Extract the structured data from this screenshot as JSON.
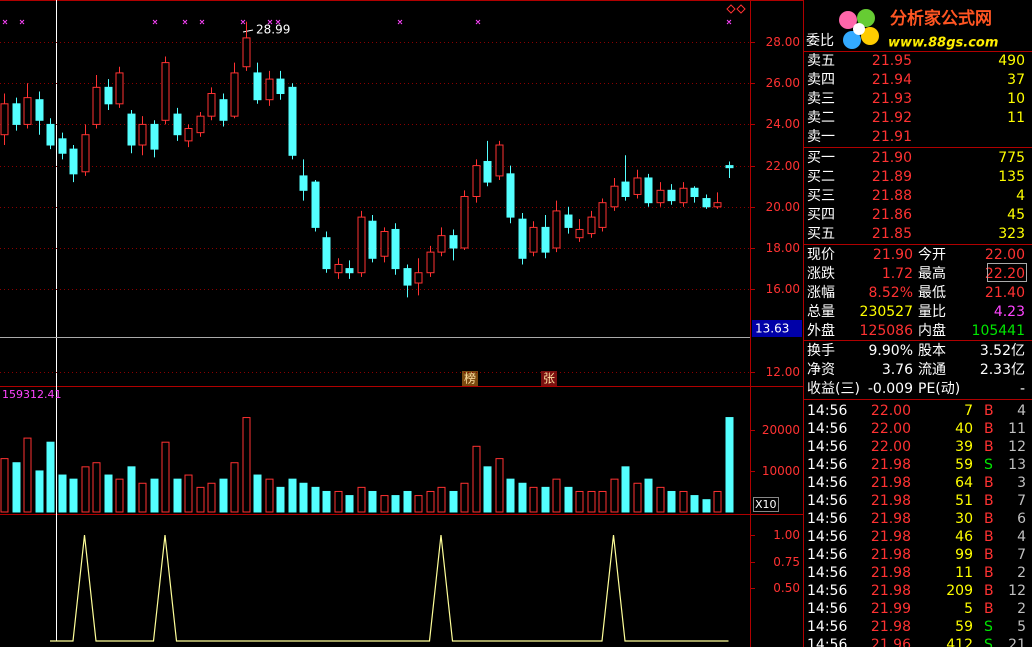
{
  "price_panel": {
    "type": "candlestick",
    "ylim": [
      11.3,
      30.04
    ],
    "yticks": [
      {
        "value": 28,
        "label": "28.00"
      },
      {
        "value": 26,
        "label": "26.00"
      },
      {
        "value": 24,
        "label": "24.00"
      },
      {
        "value": 22,
        "label": "22.00"
      },
      {
        "value": 20,
        "label": "20.00"
      },
      {
        "value": 18,
        "label": "18.00"
      },
      {
        "value": 16,
        "label": "16.00"
      },
      {
        "value": 12,
        "label": "12.00"
      }
    ],
    "up_color": "#ff3232",
    "down_color": "#54ffff",
    "grid": true,
    "ohlc": [
      [
        23.5,
        25.5,
        23.0,
        25.0
      ],
      [
        25.0,
        25.3,
        23.7,
        24.0
      ],
      [
        24.0,
        26.0,
        23.8,
        25.3
      ],
      [
        25.2,
        25.6,
        23.5,
        24.2
      ],
      [
        24.0,
        24.3,
        22.8,
        23.0
      ],
      [
        23.3,
        23.6,
        22.3,
        22.6
      ],
      [
        22.8,
        23.0,
        21.2,
        21.6
      ],
      [
        21.7,
        24.0,
        21.5,
        23.5
      ],
      [
        24.0,
        26.4,
        23.8,
        25.8
      ],
      [
        25.8,
        26.2,
        24.7,
        25.0
      ],
      [
        25.0,
        26.8,
        24.8,
        26.5
      ],
      [
        24.5,
        24.7,
        22.6,
        23.0
      ],
      [
        23.0,
        24.4,
        22.5,
        24.0
      ],
      [
        24.0,
        24.2,
        22.4,
        22.8
      ],
      [
        24.2,
        27.3,
        24.0,
        27.0
      ],
      [
        24.5,
        24.8,
        23.2,
        23.5
      ],
      [
        23.2,
        24.0,
        22.9,
        23.8
      ],
      [
        23.6,
        24.6,
        23.4,
        24.4
      ],
      [
        24.4,
        25.8,
        24.2,
        25.5
      ],
      [
        25.2,
        25.5,
        23.9,
        24.2
      ],
      [
        24.4,
        27.0,
        24.3,
        26.5
      ],
      [
        26.8,
        28.99,
        26.6,
        28.2
      ],
      [
        26.5,
        27.0,
        25.0,
        25.2
      ],
      [
        25.2,
        26.6,
        24.9,
        26.2
      ],
      [
        26.2,
        26.6,
        25.2,
        25.5
      ],
      [
        25.8,
        26.0,
        22.3,
        22.5
      ],
      [
        21.5,
        22.3,
        20.3,
        20.8
      ],
      [
        21.2,
        21.3,
        18.8,
        19.0
      ],
      [
        18.5,
        18.8,
        16.8,
        17.0
      ],
      [
        16.8,
        17.5,
        16.5,
        17.2
      ],
      [
        17.0,
        17.4,
        16.5,
        16.8
      ],
      [
        16.8,
        19.8,
        16.6,
        19.5
      ],
      [
        19.3,
        19.6,
        17.3,
        17.5
      ],
      [
        17.6,
        19.0,
        17.3,
        18.8
      ],
      [
        18.9,
        19.2,
        16.7,
        17.0
      ],
      [
        17.0,
        17.2,
        15.6,
        16.2
      ],
      [
        16.3,
        17.5,
        15.7,
        16.8
      ],
      [
        16.8,
        18.1,
        16.6,
        17.8
      ],
      [
        17.8,
        19.0,
        17.6,
        18.6
      ],
      [
        18.6,
        18.9,
        17.4,
        18.0
      ],
      [
        18.0,
        20.8,
        17.9,
        20.5
      ],
      [
        20.5,
        22.3,
        20.2,
        22.0
      ],
      [
        22.2,
        23.2,
        21.0,
        21.2
      ],
      [
        21.5,
        23.2,
        21.3,
        23.0
      ],
      [
        21.6,
        22.0,
        19.2,
        19.5
      ],
      [
        19.4,
        19.7,
        17.2,
        17.5
      ],
      [
        17.8,
        19.3,
        17.6,
        19.0
      ],
      [
        19.0,
        19.6,
        17.5,
        17.8
      ],
      [
        18.0,
        20.3,
        17.8,
        19.8
      ],
      [
        19.6,
        20.0,
        18.7,
        19.0
      ],
      [
        18.5,
        19.4,
        18.3,
        18.9
      ],
      [
        18.7,
        19.8,
        18.5,
        19.5
      ],
      [
        19.0,
        20.4,
        18.8,
        20.2
      ],
      [
        20.0,
        21.4,
        19.8,
        21.0
      ],
      [
        21.2,
        22.5,
        20.3,
        20.5
      ],
      [
        20.6,
        21.8,
        20.4,
        21.4
      ],
      [
        21.4,
        21.6,
        20.0,
        20.2
      ],
      [
        20.2,
        21.2,
        20.0,
        20.8
      ],
      [
        20.8,
        21.1,
        20.1,
        20.3
      ],
      [
        20.2,
        21.2,
        20.0,
        20.9
      ],
      [
        20.9,
        21.0,
        20.2,
        20.5
      ],
      [
        20.4,
        20.6,
        19.9,
        20.0
      ],
      [
        20.0,
        20.7,
        19.9,
        20.2
      ],
      [
        22.0,
        22.2,
        21.4,
        21.9
      ]
    ],
    "high_label": "28.99",
    "crosshair_label": "13.63",
    "event_tags": [
      "榜",
      "张"
    ]
  },
  "volume_panel": {
    "type": "bar",
    "title": "159312.41",
    "ylim": [
      0,
      30200
    ],
    "yticks": [
      20000,
      10000
    ],
    "unit_tag": "X10",
    "values": [
      13000,
      12000,
      18000,
      10000,
      17000,
      9000,
      8000,
      11000,
      12000,
      9000,
      8000,
      11000,
      7000,
      8000,
      17000,
      8000,
      9000,
      6000,
      7000,
      8000,
      12000,
      23000,
      9000,
      8000,
      6000,
      8000,
      7000,
      6000,
      5000,
      5000,
      4000,
      6000,
      5000,
      4000,
      4000,
      5000,
      4000,
      5000,
      6000,
      5000,
      7000,
      16000,
      11000,
      13000,
      8000,
      7000,
      6000,
      6000,
      8000,
      6000,
      5000,
      5000,
      5000,
      8000,
      11000,
      7000,
      8000,
      6000,
      5000,
      5000,
      4000,
      3000,
      5000,
      23000
    ]
  },
  "signal_panel": {
    "type": "line",
    "color": "#ffff99",
    "ylim": [
      0,
      1.18
    ],
    "yticks": [
      {
        "value": 1,
        "label": "1.00"
      },
      {
        "value": 0.75,
        "label": "0.75"
      },
      {
        "value": 0.5,
        "label": "0.50"
      }
    ],
    "values": [
      null,
      null,
      null,
      null,
      0,
      0,
      0,
      1,
      0,
      0,
      0,
      0,
      0,
      0,
      1,
      0,
      0,
      0,
      0,
      0,
      0,
      0,
      0,
      0,
      0,
      0,
      0,
      0,
      0,
      0,
      0,
      0,
      0,
      0,
      0,
      0,
      0,
      0,
      1,
      0,
      0,
      0,
      0,
      0,
      0,
      0,
      0,
      0,
      0,
      0,
      0,
      0,
      0,
      1,
      0,
      0,
      0,
      0,
      0,
      0,
      0,
      0,
      0,
      0
    ]
  },
  "logo": {
    "name": "分析家公式网",
    "url": "www.88gs.com"
  },
  "order_book": {
    "header": "委比",
    "sell": [
      {
        "label": "卖五",
        "price": "21.95",
        "volume": "490"
      },
      {
        "label": "卖四",
        "price": "21.94",
        "volume": "37"
      },
      {
        "label": "卖三",
        "price": "21.93",
        "volume": "10"
      },
      {
        "label": "卖二",
        "price": "21.92",
        "volume": "11"
      },
      {
        "label": "卖一",
        "price": "21.91"
      }
    ],
    "buy": [
      {
        "label": "买一",
        "price": "21.90",
        "volume": "775"
      },
      {
        "label": "买二",
        "price": "21.89",
        "volume": "135"
      },
      {
        "label": "买三",
        "price": "21.88",
        "volume": "4"
      },
      {
        "label": "买四",
        "price": "21.86",
        "volume": "45"
      },
      {
        "label": "买五",
        "price": "21.85",
        "volume": "323"
      }
    ]
  },
  "stats": [
    [
      {
        "label": "现价",
        "value": "21.90",
        "color": "#ff3232"
      },
      {
        "label": "今开",
        "value": "22.00",
        "color": "#ff3232"
      }
    ],
    [
      {
        "label": "涨跌",
        "value": "1.72",
        "color": "#ff3232"
      },
      {
        "label": "最高",
        "value": "22.20",
        "color": "#ff3232"
      }
    ],
    [
      {
        "label": "涨幅",
        "value": "8.52%",
        "color": "#ff3232"
      },
      {
        "label": "最低",
        "value": "21.40",
        "color": "#ff3232"
      }
    ],
    [
      {
        "label": "总量",
        "value": "230527",
        "color": "#ffff00"
      },
      {
        "label": "量比",
        "value": "4.23",
        "color": "#ff44ff"
      }
    ],
    [
      {
        "label": "外盘",
        "value": "125086",
        "color": "#ff3232"
      },
      {
        "label": "内盘",
        "value": "105441",
        "color": "#00e600"
      }
    ],
    [
      {
        "label": "换手",
        "value": "9.90%",
        "color": "#ffffff"
      },
      {
        "label": "股本",
        "value": "3.52亿",
        "color": "#ffffff"
      }
    ],
    [
      {
        "label": "净资",
        "value": "3.76",
        "color": "#ffffff"
      },
      {
        "label": "流通",
        "value": "2.33亿",
        "color": "#ffffff"
      }
    ],
    [
      {
        "label": "收益(三)",
        "value": "-0.009",
        "color": "#ffffff"
      },
      {
        "label": "PE(动)",
        "value": "-",
        "color": "#ffffff"
      }
    ]
  ],
  "trades": [
    [
      "14:56",
      "22.00",
      "7",
      "B",
      "4"
    ],
    [
      "14:56",
      "22.00",
      "40",
      "B",
      "11"
    ],
    [
      "14:56",
      "22.00",
      "39",
      "B",
      "12"
    ],
    [
      "14:56",
      "21.98",
      "59",
      "S",
      "13"
    ],
    [
      "14:56",
      "21.98",
      "64",
      "B",
      "3"
    ],
    [
      "14:56",
      "21.98",
      "51",
      "B",
      "7"
    ],
    [
      "14:56",
      "21.98",
      "30",
      "B",
      "6"
    ],
    [
      "14:56",
      "21.98",
      "46",
      "B",
      "4"
    ],
    [
      "14:56",
      "21.98",
      "99",
      "B",
      "7"
    ],
    [
      "14:56",
      "21.98",
      "11",
      "B",
      "2"
    ],
    [
      "14:56",
      "21.98",
      "209",
      "B",
      "12"
    ],
    [
      "14:56",
      "21.99",
      "5",
      "B",
      "2"
    ],
    [
      "14:56",
      "21.98",
      "59",
      "S",
      "5"
    ],
    [
      "14:56",
      "21.96",
      "412",
      "S",
      "21"
    ]
  ]
}
